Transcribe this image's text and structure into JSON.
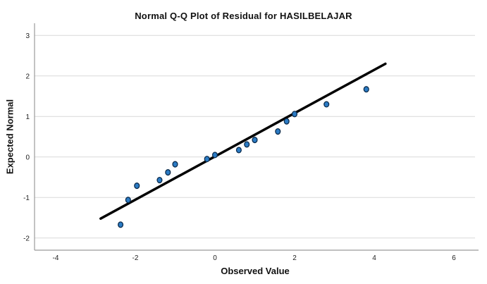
{
  "chart_data": {
    "type": "scatter",
    "title": "Normal Q-Q Plot of Residual for HASILBELAJAR",
    "xlabel": "Observed Value",
    "ylabel": "Expected Normal",
    "xlim": [
      -4.53,
      6.53
    ],
    "ylim": [
      -2.3,
      3.3
    ],
    "x_ticks": [
      -4,
      -2,
      0,
      2,
      4,
      6
    ],
    "y_ticks": [
      -2,
      -1,
      0,
      1,
      2,
      3
    ],
    "grid": "horizontal-only",
    "legend": "none",
    "points": [
      [
        -2.37,
        -1.67
      ],
      [
        -2.18,
        -1.06
      ],
      [
        -1.96,
        -0.71
      ],
      [
        -1.39,
        -0.57
      ],
      [
        -1.18,
        -0.38
      ],
      [
        -1.0,
        -0.18
      ],
      [
        -0.2,
        -0.05
      ],
      [
        0.0,
        0.05
      ],
      [
        0.6,
        0.17
      ],
      [
        0.8,
        0.31
      ],
      [
        1.0,
        0.42
      ],
      [
        1.58,
        0.63
      ],
      [
        1.8,
        0.88
      ],
      [
        2.0,
        1.06
      ],
      [
        2.8,
        1.3
      ],
      [
        3.8,
        1.67
      ]
    ],
    "fit_line": {
      "x1": -2.87,
      "y1": -1.52,
      "x2": 4.28,
      "y2": 2.3
    },
    "colors": {
      "point_fill": "#2B7BC4",
      "point_stroke": "#0B2B4C",
      "line": "#000000",
      "grid": "#D9D9D9",
      "axis": "#9B9B9B",
      "text": "#222222"
    }
  }
}
